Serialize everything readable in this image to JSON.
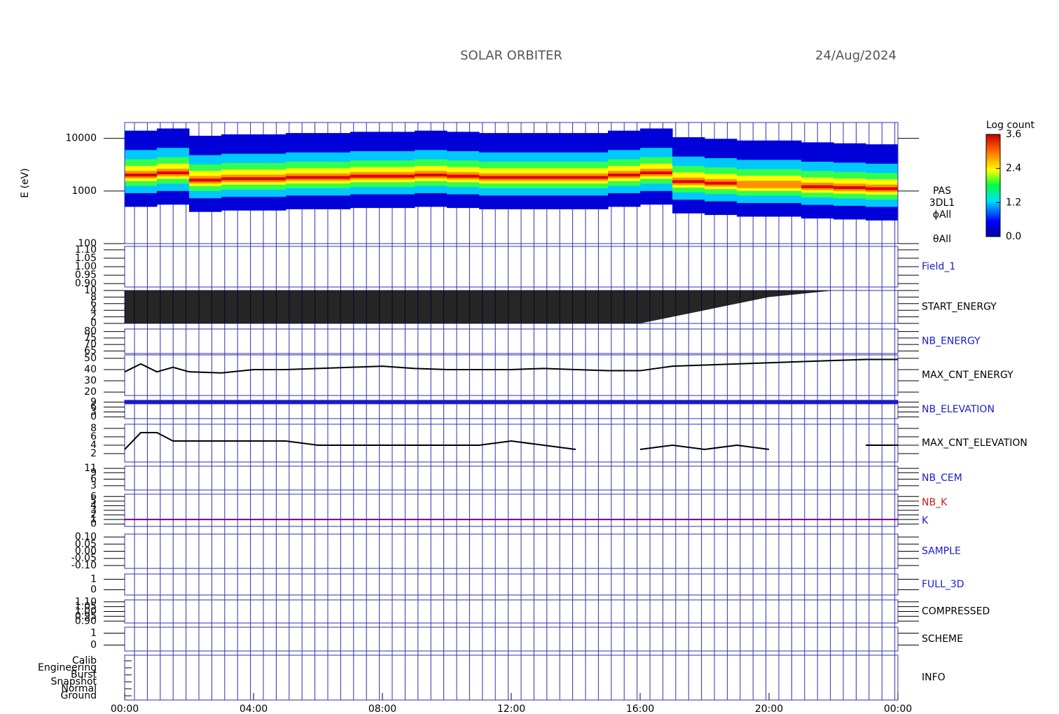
{
  "chart_data": [
    {
      "type": "spectrogram",
      "title": "SOLAR ORBITER",
      "date": "24/Aug/2024",
      "ylabel": "E (eV)",
      "log": true,
      "ylim": [
        100,
        20000
      ],
      "yticks": [
        100,
        1000,
        10000
      ],
      "labels": [
        "PAS",
        "3DL1",
        "ϕAll",
        "θAll"
      ],
      "x": [
        0,
        1,
        2,
        3,
        4,
        5,
        6,
        7,
        8,
        9,
        10,
        11,
        12,
        13,
        14,
        15,
        16,
        17,
        18,
        19,
        20,
        21,
        22,
        23,
        24
      ],
      "peak": [
        2000,
        2200,
        1600,
        1700,
        1700,
        1800,
        1800,
        1900,
        1900,
        2000,
        1900,
        1800,
        1800,
        1800,
        1800,
        2000,
        2200,
        1500,
        1400,
        1300,
        1300,
        1200,
        1150,
        1100,
        1100
      ],
      "colorbar": {
        "label": "Log count",
        "lim": [
          0,
          3.6
        ],
        "ticks": [
          {
            "value": 0,
            "label": "0.0"
          },
          {
            "value": 1.2,
            "label": "1.2"
          },
          {
            "value": 2.4,
            "label": "2.4"
          },
          {
            "value": 3.6,
            "label": "3.6"
          }
        ]
      }
    },
    {
      "type": "line",
      "label": "Field_1",
      "label_color": "#1a1acc",
      "ylim": [
        0.88,
        1.12
      ],
      "yticks": [
        {
          "value": 0.9,
          "label": "0.90"
        },
        {
          "value": 0.95,
          "label": "0.95"
        },
        {
          "value": 1.0,
          "label": "1.00"
        },
        {
          "value": 1.05,
          "label": "1.05"
        },
        {
          "value": 1.1,
          "label": "1.10"
        }
      ]
    },
    {
      "type": "area",
      "label": "START_ENERGY",
      "label_color": "#000000",
      "color": "#000000",
      "ylim": [
        0,
        10
      ],
      "yticks": [
        0,
        2,
        4,
        6,
        8,
        10
      ],
      "x": [
        0,
        1,
        2,
        3,
        4,
        5,
        6,
        7,
        8,
        9,
        10,
        11,
        12,
        13,
        14,
        15,
        16,
        17,
        18,
        19,
        20,
        21,
        22,
        23,
        24
      ],
      "values": [
        0,
        0,
        0,
        0,
        0,
        0,
        0,
        0,
        0,
        0,
        0,
        0,
        0,
        0,
        0,
        0,
        0,
        2,
        4,
        6,
        8,
        9,
        10,
        10,
        10
      ]
    },
    {
      "type": "line",
      "label": "NB_ENERGY",
      "label_color": "#1a1acc",
      "ylim": [
        63,
        82
      ],
      "yticks": [
        65,
        70,
        75,
        80
      ]
    },
    {
      "type": "line",
      "label": "MAX_CNT_ENERGY",
      "label_color": "#000000",
      "color": "#000000",
      "ylim": [
        17,
        53
      ],
      "yticks": [
        20,
        30,
        40,
        50
      ],
      "x": [
        0,
        0.5,
        1,
        1.5,
        2,
        3,
        4,
        5,
        6,
        7,
        8,
        9,
        10,
        11,
        12,
        13,
        14,
        15,
        16,
        17,
        18,
        19,
        20,
        21,
        22,
        23,
        24
      ],
      "values": [
        38,
        45,
        38,
        42,
        38,
        37,
        40,
        40,
        41,
        42,
        43,
        41,
        40,
        40,
        40,
        41,
        40,
        39,
        39,
        43,
        44,
        45,
        46,
        47,
        48,
        49,
        49
      ]
    },
    {
      "type": "line",
      "label": "NB_ELEVATION",
      "label_color": "#1a1acc",
      "color": "#1a1acc",
      "ylim": [
        -1,
        10
      ],
      "yticks": [
        0,
        3,
        6,
        9
      ],
      "x": [
        0,
        24
      ],
      "values": [
        9,
        9
      ]
    },
    {
      "type": "line",
      "label": "MAX_CNT_ELEVATION",
      "label_color": "#000000",
      "color": "#000000",
      "ylim": [
        0,
        9
      ],
      "yticks": [
        2,
        4,
        6,
        8
      ],
      "x": [
        0,
        0.5,
        1,
        1.5,
        2,
        3,
        4,
        5,
        6,
        7,
        8,
        9,
        10,
        11,
        12,
        13,
        14,
        15,
        16,
        17,
        18,
        19,
        20,
        21,
        22,
        23,
        24
      ],
      "values": [
        3,
        7,
        7,
        5,
        5,
        5,
        5,
        5,
        4,
        4,
        4,
        4,
        4,
        4,
        5,
        4,
        3,
        null,
        3,
        4,
        3,
        4,
        3,
        null,
        null,
        4,
        4
      ]
    },
    {
      "type": "line",
      "label": "NB_CEM",
      "label_color": "#1a1acc",
      "ylim": [
        1,
        12
      ],
      "yticks": [
        3,
        6,
        9,
        11
      ]
    },
    {
      "type": "line",
      "series": [
        {
          "name": "NB_K",
          "color": "#cc1a1a",
          "x": [],
          "values": []
        },
        {
          "name": "K",
          "color": "#800080",
          "x": [
            0,
            24
          ],
          "values": [
            1,
            1
          ]
        }
      ],
      "ylim": [
        -0.5,
        6.5
      ],
      "yticks": [
        0,
        1,
        2,
        3,
        4,
        5,
        6
      ]
    },
    {
      "type": "line",
      "label": "SAMPLE",
      "label_color": "#1a1acc",
      "ylim": [
        -0.12,
        0.12
      ],
      "yticks": [
        {
          "value": -0.1,
          "label": "-0.10"
        },
        {
          "value": -0.05,
          "label": "-0.05"
        },
        {
          "value": 0,
          "label": "0.00"
        },
        {
          "value": 0.05,
          "label": "0.05"
        },
        {
          "value": 0.1,
          "label": "0.10"
        }
      ]
    },
    {
      "type": "line",
      "label": "FULL_3D",
      "label_color": "#1a1acc",
      "ylim": [
        -0.5,
        1.5
      ],
      "yticks": [
        0,
        1
      ]
    },
    {
      "type": "line",
      "label": "COMPRESSED",
      "label_color": "#000000",
      "ylim": [
        0.88,
        1.12
      ],
      "yticks": [
        {
          "value": 0.9,
          "label": "0.90"
        },
        {
          "value": 0.95,
          "label": "0.95"
        },
        {
          "value": 1.0,
          "label": "1.00"
        },
        {
          "value": 1.05,
          "label": "1.05"
        },
        {
          "value": 1.1,
          "label": "1.10"
        }
      ]
    },
    {
      "type": "line",
      "label": "SCHEME",
      "label_color": "#000000",
      "ylim": [
        -0.5,
        1.5
      ],
      "yticks": [
        0,
        1
      ]
    },
    {
      "type": "category",
      "label": "INFO",
      "label_color": "#000000",
      "categories": [
        "Calib",
        "Engineering",
        "Burst",
        "Snapshot",
        "Normal",
        "Ground"
      ],
      "xlim": [
        0,
        24
      ],
      "xticks": [
        {
          "value": 0,
          "label": "00:00"
        },
        {
          "value": 4,
          "label": "04:00"
        },
        {
          "value": 8,
          "label": "08:00"
        },
        {
          "value": 12,
          "label": "12:00"
        },
        {
          "value": 16,
          "label": "16:00"
        },
        {
          "value": 20,
          "label": "20:00"
        },
        {
          "value": 24,
          "label": "00:00"
        }
      ]
    }
  ]
}
